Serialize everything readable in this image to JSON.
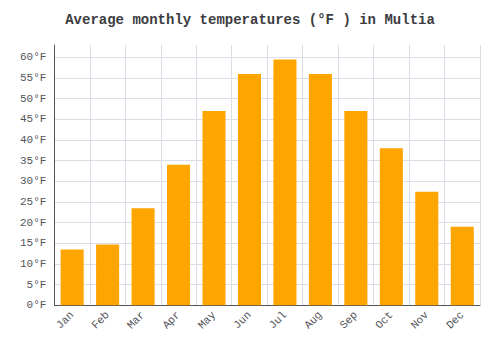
{
  "chart_data": {
    "type": "bar",
    "title": "Average monthly temperatures (°F ) in Multia",
    "categories": [
      "Jan",
      "Feb",
      "Mar",
      "Apr",
      "May",
      "Jun",
      "Jul",
      "Aug",
      "Sep",
      "Oct",
      "Nov",
      "Dec"
    ],
    "values": [
      13.5,
      14.7,
      23.5,
      34.0,
      47.0,
      56.0,
      59.5,
      56.0,
      47.0,
      38.0,
      27.5,
      19.0
    ],
    "color": "#FFA500",
    "ylim": [
      0,
      63
    ],
    "yticks": [
      {
        "value": 0,
        "label": "0°F"
      },
      {
        "value": 5,
        "label": "5°F"
      },
      {
        "value": 10,
        "label": "10°F"
      },
      {
        "value": 15,
        "label": "15°F"
      },
      {
        "value": 20,
        "label": "20°F"
      },
      {
        "value": 25,
        "label": "25°F"
      },
      {
        "value": 30,
        "label": "30°F"
      },
      {
        "value": 35,
        "label": "35°F"
      },
      {
        "value": 40,
        "label": "40°F"
      },
      {
        "value": 45,
        "label": "45°F"
      },
      {
        "value": 50,
        "label": "50°F"
      },
      {
        "value": 55,
        "label": "55°F"
      },
      {
        "value": 60,
        "label": "60°F"
      }
    ],
    "grid": true
  }
}
